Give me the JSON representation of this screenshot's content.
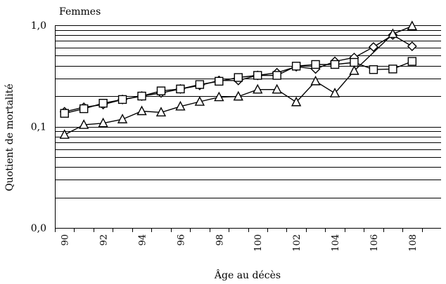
{
  "chart_data": {
    "type": "line",
    "title": "Femmes",
    "xlabel": "Âge au décès",
    "ylabel": "Quotient de mortalité",
    "yscale": "log",
    "ylim": [
      0.01,
      1.0
    ],
    "xlim": [
      89.5,
      109.5
    ],
    "grid": true,
    "y_tick_labels": [
      {
        "value": 1.0,
        "label": "1,0"
      },
      {
        "value": 0.1,
        "label": "0,1"
      },
      {
        "value": 0.01,
        "label": "0,0"
      }
    ],
    "x_tick_labels": [
      "90",
      "92",
      "94",
      "96",
      "98",
      "100",
      "102",
      "104",
      "106",
      "108"
    ],
    "series": [
      {
        "marker": "diamond",
        "x": [
          90,
          91,
          92,
          93,
          94,
          95,
          96,
          97,
          98,
          99,
          100,
          101,
          102,
          103,
          104,
          105,
          106,
          107,
          108
        ],
        "values": [
          0.14,
          0.155,
          0.165,
          0.185,
          0.2,
          0.215,
          0.235,
          0.255,
          0.285,
          0.285,
          0.32,
          0.34,
          0.39,
          0.37,
          0.44,
          0.48,
          0.61,
          0.8,
          0.62
        ]
      },
      {
        "marker": "square",
        "x": [
          90,
          91,
          92,
          93,
          94,
          95,
          96,
          97,
          98,
          99,
          100,
          101,
          102,
          103,
          104,
          105,
          106,
          107,
          108
        ],
        "values": [
          0.135,
          0.15,
          0.17,
          0.185,
          0.2,
          0.225,
          0.235,
          0.26,
          0.28,
          0.305,
          0.32,
          0.32,
          0.395,
          0.41,
          0.41,
          0.43,
          0.365,
          0.37,
          0.44
        ]
      },
      {
        "marker": "triangle",
        "x": [
          90,
          91,
          92,
          93,
          94,
          95,
          96,
          97,
          98,
          99,
          100,
          101,
          102,
          103,
          104,
          105,
          107,
          108
        ],
        "values": [
          0.083,
          0.104,
          0.108,
          0.118,
          0.142,
          0.138,
          0.158,
          0.176,
          0.195,
          0.198,
          0.232,
          0.232,
          0.174,
          0.28,
          0.213,
          0.355,
          0.82,
          0.98
        ]
      }
    ]
  }
}
